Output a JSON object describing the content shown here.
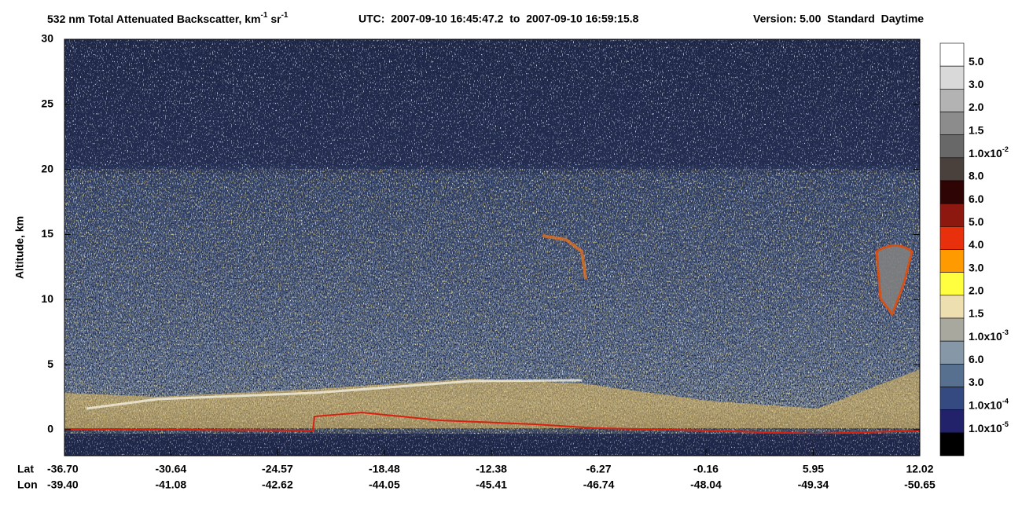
{
  "chart_data": {
    "type": "curtain",
    "title": {
      "text": "532 nm Total Attenuated Backscatter, km",
      "sup1": "-1",
      "text2": " sr",
      "sup2": "-1"
    },
    "time_range": "UTC:  2007-09-10 16:45:47.2  to  2007-09-10 16:59:15.8",
    "version": "Version: 5.00  Standard  Daytime",
    "ylabel": "Altitude, km",
    "ylim": [
      -2,
      30
    ],
    "yticks": [
      0,
      5,
      10,
      15,
      20,
      25,
      30
    ],
    "xrow_label": "Lat",
    "x2row_label": "Lon",
    "xlim": [
      -36.7,
      12.02
    ],
    "xticks": [
      {
        "value": -36.7,
        "label": "-36.70"
      },
      -30.64,
      -24.57,
      -18.48,
      -12.38,
      -6.27,
      -0.16,
      5.95,
      12.02
    ],
    "lon_labels": [
      "-39.40",
      "-41.08",
      "-42.62",
      "-44.05",
      "-45.41",
      "-46.74",
      "-48.04",
      "-49.34",
      "-50.65"
    ],
    "colorbar": {
      "colors": [
        "#ffffff",
        "#d9d9d9",
        "#b3b3b3",
        "#8c8c8c",
        "#686868",
        "#4a403c",
        "#2e0404",
        "#8c1810",
        "#e8300c",
        "#ff9a00",
        "#ffff40",
        "#eedfb0",
        "#a8a89e",
        "#8697a8",
        "#587090",
        "#344a80",
        "#22226a",
        "#000000"
      ],
      "labels": [
        "5.0",
        "3.0",
        "2.0",
        "1.5",
        {
          "base": "1.0x10",
          "sup": "-2"
        },
        "8.0",
        "6.0",
        "5.0",
        "4.0",
        "3.0",
        "2.0",
        "1.5",
        {
          "base": "1.0x10",
          "sup": "-3"
        },
        "6.0",
        "3.0",
        {
          "base": "1.0x10",
          "sup": "-4"
        },
        {
          "base": "1.0x10",
          "sup": "-5"
        }
      ]
    }
  }
}
